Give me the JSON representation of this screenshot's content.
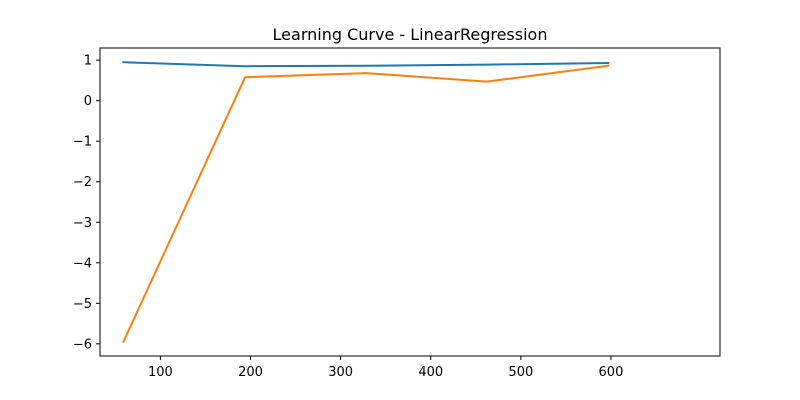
{
  "chart_data": {
    "type": "line",
    "title": "Learning Curve - LinearRegression",
    "xlabel": "",
    "ylabel": "",
    "xlim": [
      33,
      721
    ],
    "ylim": [
      -6.3,
      1.3
    ],
    "x_ticks": [
      100,
      200,
      300,
      400,
      500,
      600
    ],
    "y_ticks": [
      1,
      0,
      -1,
      -2,
      -3,
      -4,
      -5,
      -6
    ],
    "x_tick_labels": [
      "100",
      "200",
      "300",
      "400",
      "500",
      "600"
    ],
    "y_tick_labels": [
      "1",
      "0",
      "−1",
      "−2",
      "−3",
      "−4",
      "−5",
      "−6"
    ],
    "grid": false,
    "series": [
      {
        "color": "#1f77b4",
        "x": [
          59,
          194,
          328,
          462,
          597
        ],
        "y": [
          0.95,
          0.85,
          0.86,
          0.89,
          0.93
        ]
      },
      {
        "color": "#ff7f0e",
        "x": [
          59,
          194,
          328,
          462,
          597
        ],
        "y": [
          -5.95,
          0.58,
          0.68,
          0.47,
          0.86
        ]
      }
    ]
  }
}
